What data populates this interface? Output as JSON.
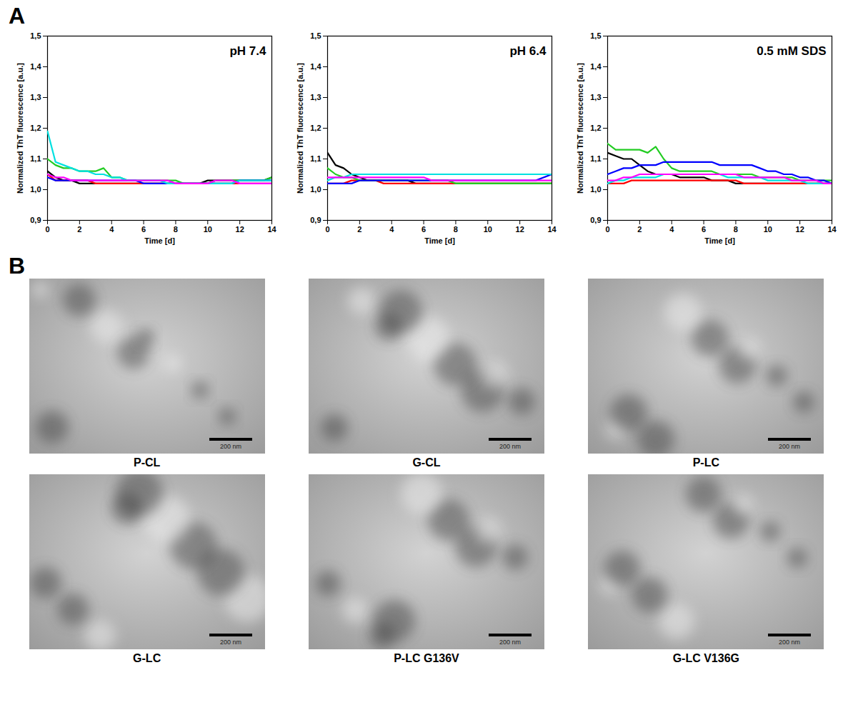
{
  "panel_labels": [
    "A",
    "B"
  ],
  "chart_data": [
    {
      "type": "line",
      "annotation": "pH 7.4",
      "x_label": "Time [d]",
      "y_label": "Normalized ThT fluorescence [a.u.]",
      "x": [
        0,
        0.5,
        1,
        1.5,
        2,
        2.5,
        3,
        3.5,
        4,
        4.5,
        5,
        5.5,
        6,
        6.5,
        7,
        7.5,
        8,
        8.5,
        9,
        9.5,
        10,
        10.5,
        11,
        11.5,
        12,
        12.5,
        13,
        13.5,
        14
      ],
      "xlim": [
        0,
        14
      ],
      "xticks": [
        0,
        2,
        4,
        6,
        8,
        10,
        12,
        14
      ],
      "ylim": [
        0.9,
        1.5
      ],
      "yticks": [
        {
          "value": 0.9,
          "label": "0,9"
        },
        {
          "value": 1.0,
          "label": "1,0"
        },
        {
          "value": 1.1,
          "label": "1,1"
        },
        {
          "value": 1.2,
          "label": "1,2"
        },
        {
          "value": 1.3,
          "label": "1,3"
        },
        {
          "value": 1.4,
          "label": "1,4"
        },
        {
          "value": 1.5,
          "label": "1,5"
        }
      ],
      "series": [
        {
          "color": "#000000",
          "values": [
            1.06,
            1.04,
            1.03,
            1.03,
            1.02,
            1.02,
            1.02,
            1.02,
            1.02,
            1.02,
            1.02,
            1.02,
            1.02,
            1.02,
            1.02,
            1.02,
            1.02,
            1.02,
            1.02,
            1.02,
            1.03,
            1.03,
            1.03,
            1.03,
            1.03,
            1.03,
            1.03,
            1.03,
            1.04
          ]
        },
        {
          "color": "#ff0000",
          "values": [
            1.05,
            1.03,
            1.03,
            1.03,
            1.03,
            1.03,
            1.02,
            1.02,
            1.02,
            1.02,
            1.02,
            1.02,
            1.02,
            1.02,
            1.02,
            1.02,
            1.02,
            1.02,
            1.02,
            1.02,
            1.02,
            1.02,
            1.02,
            1.02,
            1.02,
            1.02,
            1.02,
            1.02,
            1.02
          ]
        },
        {
          "color": "#22cc22",
          "values": [
            1.1,
            1.08,
            1.07,
            1.07,
            1.06,
            1.06,
            1.06,
            1.07,
            1.04,
            1.04,
            1.03,
            1.03,
            1.03,
            1.03,
            1.03,
            1.03,
            1.03,
            1.02,
            1.02,
            1.02,
            1.02,
            1.03,
            1.03,
            1.03,
            1.03,
            1.03,
            1.03,
            1.03,
            1.04
          ]
        },
        {
          "color": "#0000ff",
          "values": [
            1.04,
            1.03,
            1.03,
            1.03,
            1.03,
            1.03,
            1.03,
            1.03,
            1.03,
            1.03,
            1.03,
            1.03,
            1.02,
            1.02,
            1.02,
            1.02,
            1.02,
            1.02,
            1.02,
            1.02,
            1.02,
            1.02,
            1.02,
            1.02,
            1.03,
            1.03,
            1.03,
            1.03,
            1.03
          ]
        },
        {
          "color": "#00e0e0",
          "values": [
            1.19,
            1.09,
            1.08,
            1.07,
            1.06,
            1.06,
            1.05,
            1.05,
            1.04,
            1.04,
            1.03,
            1.03,
            1.03,
            1.03,
            1.03,
            1.02,
            1.02,
            1.02,
            1.02,
            1.02,
            1.02,
            1.02,
            1.02,
            1.02,
            1.03,
            1.03,
            1.03,
            1.03,
            1.03
          ]
        },
        {
          "color": "#ff00ff",
          "values": [
            1.05,
            1.04,
            1.04,
            1.03,
            1.03,
            1.03,
            1.03,
            1.03,
            1.03,
            1.03,
            1.03,
            1.03,
            1.03,
            1.03,
            1.03,
            1.03,
            1.02,
            1.02,
            1.02,
            1.02,
            1.02,
            1.03,
            1.03,
            1.03,
            1.02,
            1.02,
            1.02,
            1.02,
            1.02
          ]
        }
      ]
    },
    {
      "type": "line",
      "annotation": "pH 6.4",
      "x_label": "Time [d]",
      "y_label": "Normalized ThT fluorescence [a.u.]",
      "x": [
        0,
        0.5,
        1,
        1.5,
        2,
        2.5,
        3,
        3.5,
        4,
        4.5,
        5,
        5.5,
        6,
        6.5,
        7,
        7.5,
        8,
        8.5,
        9,
        9.5,
        10,
        10.5,
        11,
        11.5,
        12,
        12.5,
        13,
        13.5,
        14
      ],
      "xlim": [
        0,
        14
      ],
      "xticks": [
        0,
        2,
        4,
        6,
        8,
        10,
        12,
        14
      ],
      "ylim": [
        0.9,
        1.5
      ],
      "yticks": [
        {
          "value": 0.9,
          "label": "0,9"
        },
        {
          "value": 1.0,
          "label": "1,0"
        },
        {
          "value": 1.1,
          "label": "1,1"
        },
        {
          "value": 1.2,
          "label": "1,2"
        },
        {
          "value": 1.3,
          "label": "1,3"
        },
        {
          "value": 1.4,
          "label": "1,4"
        },
        {
          "value": 1.5,
          "label": "1,5"
        }
      ],
      "series": [
        {
          "color": "#000000",
          "values": [
            1.12,
            1.08,
            1.07,
            1.05,
            1.04,
            1.03,
            1.03,
            1.03,
            1.03,
            1.03,
            1.03,
            1.02,
            1.02,
            1.02,
            1.02,
            1.02,
            1.02,
            1.02,
            1.02,
            1.02,
            1.02,
            1.02,
            1.02,
            1.02,
            1.02,
            1.02,
            1.02,
            1.02,
            1.02
          ]
        },
        {
          "color": "#ff0000",
          "values": [
            1.02,
            1.02,
            1.02,
            1.03,
            1.03,
            1.03,
            1.03,
            1.02,
            1.02,
            1.02,
            1.02,
            1.02,
            1.02,
            1.02,
            1.02,
            1.02,
            1.02,
            1.02,
            1.02,
            1.02,
            1.02,
            1.02,
            1.02,
            1.02,
            1.02,
            1.02,
            1.02,
            1.02,
            1.02
          ]
        },
        {
          "color": "#22cc22",
          "values": [
            1.07,
            1.05,
            1.04,
            1.04,
            1.03,
            1.03,
            1.03,
            1.03,
            1.03,
            1.03,
            1.03,
            1.03,
            1.03,
            1.03,
            1.03,
            1.03,
            1.02,
            1.02,
            1.02,
            1.02,
            1.02,
            1.02,
            1.02,
            1.02,
            1.02,
            1.02,
            1.02,
            1.02,
            1.02
          ]
        },
        {
          "color": "#0000ff",
          "values": [
            1.02,
            1.02,
            1.02,
            1.02,
            1.03,
            1.03,
            1.03,
            1.03,
            1.03,
            1.03,
            1.03,
            1.03,
            1.03,
            1.03,
            1.03,
            1.03,
            1.03,
            1.03,
            1.03,
            1.03,
            1.03,
            1.03,
            1.03,
            1.03,
            1.03,
            1.03,
            1.03,
            1.04,
            1.05
          ]
        },
        {
          "color": "#00e0e0",
          "values": [
            1.03,
            1.04,
            1.04,
            1.05,
            1.05,
            1.05,
            1.05,
            1.05,
            1.05,
            1.05,
            1.05,
            1.05,
            1.05,
            1.05,
            1.05,
            1.05,
            1.05,
            1.05,
            1.05,
            1.05,
            1.05,
            1.05,
            1.05,
            1.05,
            1.05,
            1.05,
            1.05,
            1.05,
            1.05
          ]
        },
        {
          "color": "#ff00ff",
          "values": [
            1.04,
            1.04,
            1.04,
            1.04,
            1.04,
            1.04,
            1.04,
            1.04,
            1.04,
            1.04,
            1.04,
            1.04,
            1.04,
            1.03,
            1.03,
            1.03,
            1.03,
            1.03,
            1.03,
            1.03,
            1.03,
            1.03,
            1.03,
            1.03,
            1.03,
            1.03,
            1.03,
            1.03,
            1.03
          ]
        }
      ]
    },
    {
      "type": "line",
      "annotation": "0.5 mM SDS",
      "x_label": "Time [d]",
      "y_label": "Normalized ThT fluorescence [a.u.]",
      "x": [
        0,
        0.5,
        1,
        1.5,
        2,
        2.5,
        3,
        3.5,
        4,
        4.5,
        5,
        5.5,
        6,
        6.5,
        7,
        7.5,
        8,
        8.5,
        9,
        9.5,
        10,
        10.5,
        11,
        11.5,
        12,
        12.5,
        13,
        13.5,
        14
      ],
      "xlim": [
        0,
        14
      ],
      "xticks": [
        0,
        2,
        4,
        6,
        8,
        10,
        12,
        14
      ],
      "ylim": [
        0.9,
        1.5
      ],
      "yticks": [
        {
          "value": 0.9,
          "label": "0,9"
        },
        {
          "value": 1.0,
          "label": "1,0"
        },
        {
          "value": 1.1,
          "label": "1,1"
        },
        {
          "value": 1.2,
          "label": "1,2"
        },
        {
          "value": 1.3,
          "label": "1,3"
        },
        {
          "value": 1.4,
          "label": "1,4"
        },
        {
          "value": 1.5,
          "label": "1,5"
        }
      ],
      "series": [
        {
          "color": "#000000",
          "values": [
            1.12,
            1.11,
            1.1,
            1.1,
            1.08,
            1.06,
            1.05,
            1.05,
            1.05,
            1.04,
            1.04,
            1.04,
            1.04,
            1.03,
            1.03,
            1.03,
            1.02,
            1.02,
            1.02,
            1.02,
            1.02,
            1.02,
            1.02,
            1.02,
            1.02,
            1.02,
            1.02,
            1.02,
            1.02
          ]
        },
        {
          "color": "#ff0000",
          "values": [
            1.02,
            1.02,
            1.02,
            1.03,
            1.03,
            1.03,
            1.03,
            1.03,
            1.03,
            1.03,
            1.03,
            1.03,
            1.03,
            1.03,
            1.03,
            1.03,
            1.03,
            1.02,
            1.02,
            1.02,
            1.02,
            1.02,
            1.02,
            1.02,
            1.02,
            1.02,
            1.02,
            1.02,
            1.02
          ]
        },
        {
          "color": "#22cc22",
          "values": [
            1.15,
            1.13,
            1.13,
            1.13,
            1.13,
            1.12,
            1.14,
            1.1,
            1.07,
            1.06,
            1.06,
            1.06,
            1.06,
            1.06,
            1.05,
            1.05,
            1.05,
            1.05,
            1.05,
            1.04,
            1.04,
            1.04,
            1.04,
            1.04,
            1.03,
            1.03,
            1.03,
            1.03,
            1.03
          ]
        },
        {
          "color": "#0000ff",
          "values": [
            1.05,
            1.06,
            1.07,
            1.07,
            1.08,
            1.08,
            1.08,
            1.09,
            1.09,
            1.09,
            1.09,
            1.09,
            1.09,
            1.09,
            1.08,
            1.08,
            1.08,
            1.08,
            1.08,
            1.07,
            1.06,
            1.06,
            1.05,
            1.05,
            1.04,
            1.04,
            1.03,
            1.03,
            1.02
          ]
        },
        {
          "color": "#00e0e0",
          "values": [
            1.02,
            1.03,
            1.03,
            1.04,
            1.04,
            1.04,
            1.04,
            1.05,
            1.05,
            1.05,
            1.05,
            1.05,
            1.05,
            1.05,
            1.05,
            1.04,
            1.04,
            1.04,
            1.04,
            1.04,
            1.03,
            1.03,
            1.03,
            1.03,
            1.03,
            1.02,
            1.02,
            1.02,
            1.02
          ]
        },
        {
          "color": "#ff00ff",
          "values": [
            1.03,
            1.03,
            1.04,
            1.04,
            1.05,
            1.05,
            1.05,
            1.05,
            1.05,
            1.05,
            1.05,
            1.05,
            1.05,
            1.05,
            1.05,
            1.05,
            1.05,
            1.04,
            1.04,
            1.04,
            1.04,
            1.04,
            1.04,
            1.03,
            1.03,
            1.03,
            1.03,
            1.02,
            1.02
          ]
        }
      ]
    }
  ],
  "images": {
    "labels": [
      "P-CL",
      "G-CL",
      "P-LC",
      "G-LC",
      "P-LC G136V",
      "G-LC V136G"
    ],
    "scale_bar": "200 nm"
  }
}
